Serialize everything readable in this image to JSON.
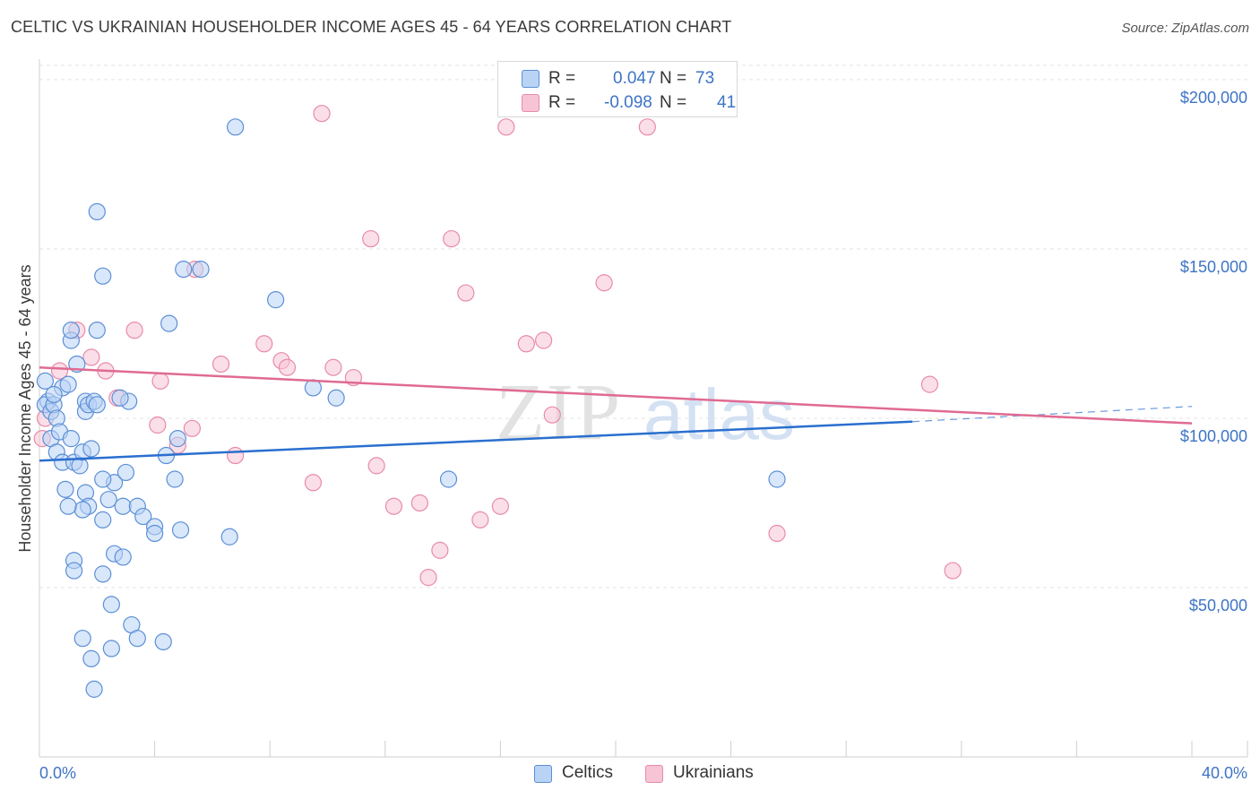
{
  "title": "CELTIC VS UKRAINIAN HOUSEHOLDER INCOME AGES 45 - 64 YEARS CORRELATION CHART",
  "source": "Source: ZipAtlas.com",
  "legend": {
    "rows": [
      {
        "r_label": "R =",
        "r_value": "0.047",
        "n_label": "N =",
        "n_value": "73"
      },
      {
        "r_label": "R =",
        "r_value": "-0.098",
        "n_label": "N =",
        "n_value": "41"
      }
    ]
  },
  "bottom_legend": {
    "celtics": "Celtics",
    "ukrainians": "Ukrainians"
  },
  "colors": {
    "celtic_fill": "#b9d3f5",
    "celtic_stroke": "#5b8fd6",
    "celtic_line": "#2a6fcf",
    "ukr_fill": "#f7c4d5",
    "ukr_stroke": "#e88aa9",
    "ukr_line": "#e06a92",
    "grid": "#e3e3e3",
    "axis_text": "#3d74c6"
  },
  "chart_data": {
    "type": "scatter",
    "title": "CELTIC VS UKRAINIAN HOUSEHOLDER INCOME AGES 45 - 64 YEARS CORRELATION CHART",
    "xlabel": "",
    "ylabel": "Householder Income Ages 45 - 64 years",
    "xlim": [
      0,
      40
    ],
    "ylim": [
      0,
      205000
    ],
    "x_tick_labels": [
      "0.0%",
      "40.0%"
    ],
    "y_ticks": [
      50000,
      100000,
      150000,
      200000
    ],
    "y_tick_labels": [
      "$50,000",
      "$100,000",
      "$150,000",
      "$200,000"
    ],
    "watermark": "ZIPatlas",
    "series": [
      {
        "name": "Celtics",
        "R": 0.047,
        "N": 73,
        "trend": {
          "x0": 0,
          "y0": 87500,
          "x1": 30.3,
          "y1": 99000,
          "dash_x1": 40,
          "dash_y1": 103500
        },
        "points": [
          [
            0.2,
            111000
          ],
          [
            0.3,
            105000
          ],
          [
            0.2,
            104000
          ],
          [
            0.4,
            102000
          ],
          [
            0.5,
            104000
          ],
          [
            0.8,
            109000
          ],
          [
            0.5,
            107000
          ],
          [
            0.6,
            100000
          ],
          [
            0.4,
            94000
          ],
          [
            0.6,
            90000
          ],
          [
            0.7,
            96000
          ],
          [
            0.8,
            87000
          ],
          [
            1.0,
            110000
          ],
          [
            1.1,
            123000
          ],
          [
            1.1,
            94000
          ],
          [
            1.2,
            87000
          ],
          [
            1.3,
            116000
          ],
          [
            1.4,
            86000
          ],
          [
            1.5,
            90000
          ],
          [
            1.6,
            105000
          ],
          [
            1.6,
            102000
          ],
          [
            1.7,
            104000
          ],
          [
            1.8,
            91000
          ],
          [
            1.9,
            105000
          ],
          [
            1.1,
            126000
          ],
          [
            2.0,
            126000
          ],
          [
            2.2,
            142000
          ],
          [
            2.0,
            161000
          ],
          [
            1.6,
            78000
          ],
          [
            1.7,
            74000
          ],
          [
            1.5,
            73000
          ],
          [
            2.2,
            70000
          ],
          [
            2.4,
            76000
          ],
          [
            2.6,
            81000
          ],
          [
            2.2,
            82000
          ],
          [
            3.0,
            84000
          ],
          [
            2.9,
            74000
          ],
          [
            3.4,
            74000
          ],
          [
            3.6,
            71000
          ],
          [
            4.0,
            68000
          ],
          [
            4.0,
            66000
          ],
          [
            4.4,
            89000
          ],
          [
            4.7,
            82000
          ],
          [
            4.9,
            67000
          ],
          [
            1.0,
            74000
          ],
          [
            1.2,
            58000
          ],
          [
            1.2,
            55000
          ],
          [
            2.2,
            54000
          ],
          [
            2.6,
            60000
          ],
          [
            2.9,
            59000
          ],
          [
            2.5,
            45000
          ],
          [
            3.2,
            39000
          ],
          [
            3.4,
            35000
          ],
          [
            4.3,
            34000
          ],
          [
            1.5,
            35000
          ],
          [
            2.5,
            32000
          ],
          [
            1.8,
            29000
          ],
          [
            1.9,
            20000
          ],
          [
            4.5,
            128000
          ],
          [
            5.0,
            144000
          ],
          [
            5.6,
            144000
          ],
          [
            6.8,
            186000
          ],
          [
            8.2,
            135000
          ],
          [
            9.5,
            109000
          ],
          [
            10.3,
            106000
          ],
          [
            14.2,
            82000
          ],
          [
            6.6,
            65000
          ],
          [
            3.1,
            105000
          ],
          [
            2.8,
            106000
          ],
          [
            4.8,
            94000
          ],
          [
            2.0,
            104000
          ],
          [
            25.6,
            82000
          ],
          [
            0.9,
            79000
          ]
        ]
      },
      {
        "name": "Ukrainians",
        "R": -0.098,
        "N": 41,
        "trend": {
          "x0": 0,
          "y0": 115000,
          "x1": 40,
          "y1": 98500
        },
        "points": [
          [
            0.1,
            94000
          ],
          [
            0.2,
            100000
          ],
          [
            0.7,
            114000
          ],
          [
            1.3,
            126000
          ],
          [
            1.8,
            118000
          ],
          [
            2.3,
            114000
          ],
          [
            2.7,
            106000
          ],
          [
            3.3,
            126000
          ],
          [
            4.1,
            98000
          ],
          [
            4.2,
            111000
          ],
          [
            4.8,
            92000
          ],
          [
            5.3,
            97000
          ],
          [
            5.4,
            144000
          ],
          [
            6.3,
            116000
          ],
          [
            6.8,
            89000
          ],
          [
            7.8,
            122000
          ],
          [
            8.4,
            117000
          ],
          [
            8.6,
            115000
          ],
          [
            9.5,
            81000
          ],
          [
            9.8,
            190000
          ],
          [
            10.2,
            115000
          ],
          [
            10.9,
            112000
          ],
          [
            11.5,
            153000
          ],
          [
            11.7,
            86000
          ],
          [
            12.3,
            74000
          ],
          [
            13.2,
            75000
          ],
          [
            13.5,
            53000
          ],
          [
            13.9,
            61000
          ],
          [
            14.3,
            153000
          ],
          [
            14.8,
            137000
          ],
          [
            15.3,
            70000
          ],
          [
            16.0,
            74000
          ],
          [
            16.2,
            186000
          ],
          [
            16.9,
            122000
          ],
          [
            17.5,
            123000
          ],
          [
            17.8,
            101000
          ],
          [
            19.6,
            140000
          ],
          [
            21.1,
            186000
          ],
          [
            25.6,
            66000
          ],
          [
            30.9,
            110000
          ],
          [
            31.7,
            55000
          ]
        ]
      }
    ]
  }
}
